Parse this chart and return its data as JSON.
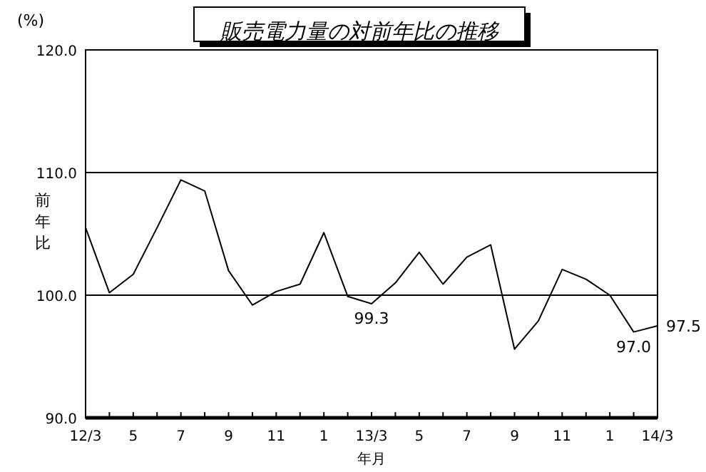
{
  "chart_data": {
    "type": "line",
    "title": "販売電力量の対前年比の推移",
    "ylabel": "前年比",
    "xlabel": "年月",
    "annotations": [
      "(%)"
    ],
    "categories": [
      "12/3",
      null,
      "5",
      null,
      "7",
      null,
      "9",
      null,
      "11",
      null,
      "1",
      null,
      "13/3",
      null,
      "5",
      null,
      "7",
      null,
      "9",
      null,
      "11",
      null,
      "1",
      null,
      "14/3"
    ],
    "series": [
      {
        "color": "#000000",
        "values": [
          105.5,
          100.2,
          101.7,
          105.5,
          109.4,
          108.5,
          102.0,
          99.2,
          100.3,
          100.9,
          105.1,
          99.9,
          99.3,
          101.0,
          103.5,
          100.9,
          103.1,
          104.1,
          95.6,
          97.9,
          102.1,
          101.3,
          100.0,
          97.0,
          97.5
        ],
        "value_labels": [
          null,
          null,
          null,
          null,
          null,
          null,
          null,
          null,
          null,
          null,
          null,
          null,
          "99.3",
          null,
          null,
          null,
          null,
          null,
          null,
          null,
          null,
          null,
          null,
          "97.0",
          "97.5"
        ]
      }
    ],
    "ylim": [
      90,
      120
    ],
    "yticks": [
      {
        "value": 90,
        "label": "90.0"
      },
      {
        "value": 100,
        "label": "100.0"
      },
      {
        "value": 110,
        "label": "110.0"
      },
      {
        "value": 120,
        "label": "120.0"
      }
    ],
    "grid": "y",
    "marker": "none",
    "line_style": "solid"
  }
}
